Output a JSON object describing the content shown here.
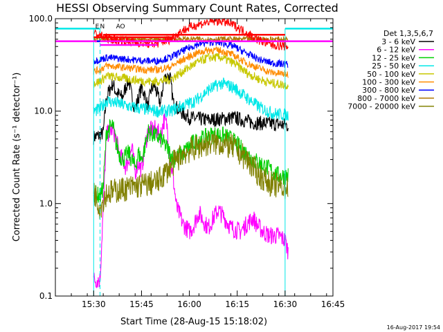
{
  "chart_data": {
    "type": "line",
    "title": "HESSI Observing Summary Count Rates, Corrected",
    "xlabel": "Start Time (28-Aug-15 15:18:02)",
    "ylabel": "Corrected Count Rate (s⁻¹ detector⁻¹)",
    "x_unit": "minutes since 15:18:02",
    "xlim": [
      0,
      87
    ],
    "ylim": [
      0.1,
      100
    ],
    "yscale": "log",
    "x_ticks": [
      {
        "t": 12,
        "label": "15:30"
      },
      {
        "t": 27,
        "label": "15:45"
      },
      {
        "t": 42,
        "label": "16:00"
      },
      {
        "t": 57,
        "label": "16:15"
      },
      {
        "t": 72,
        "label": "16:30"
      },
      {
        "t": 87,
        "label": "16:45"
      }
    ],
    "y_ticks": [
      {
        "v": 0.1,
        "label": "0.1"
      },
      {
        "v": 1,
        "label": "1.0"
      },
      {
        "v": 10,
        "label": "10.0"
      },
      {
        "v": 100,
        "label": "100.0"
      }
    ],
    "legend": {
      "title": "Det 1,3,5,6,7",
      "placement": "right"
    },
    "series": [
      {
        "name": "3 - 6 keV",
        "color": "#000000",
        "noise": 0.08,
        "points": [
          [
            12,
            5.2
          ],
          [
            14,
            5.5
          ],
          [
            15,
            5.8
          ],
          [
            16,
            14
          ],
          [
            17,
            17
          ],
          [
            18,
            20
          ],
          [
            19,
            16
          ],
          [
            21,
            14
          ],
          [
            22,
            18
          ],
          [
            23,
            22
          ],
          [
            24,
            14
          ],
          [
            25,
            10.5
          ],
          [
            26,
            14
          ],
          [
            27,
            18
          ],
          [
            28,
            15
          ],
          [
            29,
            11
          ],
          [
            30,
            17
          ],
          [
            31,
            19
          ],
          [
            32,
            15
          ],
          [
            33,
            12
          ],
          [
            34,
            22
          ],
          [
            35,
            24
          ],
          [
            36,
            23
          ],
          [
            37,
            12
          ],
          [
            39,
            10
          ],
          [
            42,
            8.5
          ],
          [
            48,
            8
          ],
          [
            56,
            8.5
          ],
          [
            62,
            7.5
          ],
          [
            70,
            7.2
          ],
          [
            73,
            7
          ]
        ]
      },
      {
        "name": "6 - 12 keV",
        "color": "#ff00ff",
        "noise": 0.1,
        "points": [
          [
            12,
            0.15
          ],
          [
            14,
            0.15
          ],
          [
            15,
            0.9
          ],
          [
            16,
            5.5
          ],
          [
            18,
            6.5
          ],
          [
            19,
            5
          ],
          [
            20,
            3.5
          ],
          [
            21,
            3
          ],
          [
            22,
            2.5
          ],
          [
            23,
            3
          ],
          [
            24,
            4
          ],
          [
            25,
            2.2
          ],
          [
            26,
            2.8
          ],
          [
            27,
            2.3
          ],
          [
            28,
            4
          ],
          [
            29,
            6
          ],
          [
            31,
            6.5
          ],
          [
            33,
            5.5
          ],
          [
            34,
            8
          ],
          [
            35,
            7
          ],
          [
            36,
            3
          ],
          [
            37,
            1.8
          ],
          [
            38,
            0.9
          ],
          [
            39,
            0.75
          ],
          [
            40,
            0.6
          ],
          [
            42,
            0.5
          ],
          [
            43,
            0.55
          ],
          [
            45,
            0.8
          ],
          [
            47,
            0.6
          ],
          [
            48,
            0.55
          ],
          [
            50,
            0.75
          ],
          [
            51,
            0.85
          ],
          [
            53,
            0.7
          ],
          [
            55,
            0.55
          ],
          [
            58,
            0.5
          ],
          [
            60,
            0.6
          ],
          [
            62,
            0.7
          ],
          [
            63,
            0.6
          ],
          [
            65,
            0.5
          ],
          [
            67,
            0.45
          ],
          [
            70,
            0.45
          ],
          [
            72,
            0.4
          ],
          [
            73,
            0.3
          ]
        ]
      },
      {
        "name": "12 - 25 keV",
        "color": "#00d000",
        "noise": 0.1,
        "points": [
          [
            12,
            1.3
          ],
          [
            14,
            1.2
          ],
          [
            15,
            1.5
          ],
          [
            16,
            6
          ],
          [
            18,
            7
          ],
          [
            19,
            4.5
          ],
          [
            20,
            3.5
          ],
          [
            21,
            3
          ],
          [
            23,
            3.5
          ],
          [
            25,
            2.5
          ],
          [
            26,
            3.5
          ],
          [
            27,
            3
          ],
          [
            28,
            4
          ],
          [
            29,
            6
          ],
          [
            31,
            5.5
          ],
          [
            33,
            5
          ],
          [
            35,
            4
          ],
          [
            37,
            3
          ],
          [
            40,
            3.5
          ],
          [
            43,
            4.5
          ],
          [
            46,
            5
          ],
          [
            49,
            5.5
          ],
          [
            52,
            5.5
          ],
          [
            55,
            5
          ],
          [
            58,
            4
          ],
          [
            62,
            3
          ],
          [
            66,
            2.5
          ],
          [
            70,
            2
          ],
          [
            73,
            2
          ]
        ]
      },
      {
        "name": "25 - 50 keV",
        "color": "#00e8e8",
        "noise": 0.07,
        "points": [
          [
            12,
            10
          ],
          [
            14,
            10.5
          ],
          [
            16,
            13
          ],
          [
            20,
            12
          ],
          [
            24,
            11
          ],
          [
            28,
            10.5
          ],
          [
            32,
            10
          ],
          [
            36,
            10
          ],
          [
            40,
            11.5
          ],
          [
            44,
            13
          ],
          [
            48,
            17
          ],
          [
            52,
            20
          ],
          [
            56,
            18
          ],
          [
            60,
            14
          ],
          [
            64,
            11
          ],
          [
            68,
            9.5
          ],
          [
            73,
            9
          ]
        ]
      },
      {
        "name": "50 - 100 keV",
        "color": "#c8c800",
        "noise": 0.05,
        "points": [
          [
            12,
            20
          ],
          [
            14,
            21
          ],
          [
            16,
            24
          ],
          [
            20,
            23
          ],
          [
            24,
            22
          ],
          [
            28,
            21
          ],
          [
            32,
            21
          ],
          [
            36,
            22
          ],
          [
            40,
            27
          ],
          [
            44,
            33
          ],
          [
            48,
            38
          ],
          [
            52,
            38
          ],
          [
            56,
            33
          ],
          [
            60,
            26
          ],
          [
            64,
            22
          ],
          [
            68,
            20
          ],
          [
            73,
            19
          ]
        ]
      },
      {
        "name": "100 - 300 keV",
        "color": "#ff8c00",
        "noise": 0.04,
        "points": [
          [
            12,
            27
          ],
          [
            14,
            28
          ],
          [
            16,
            31
          ],
          [
            20,
            30
          ],
          [
            24,
            29
          ],
          [
            28,
            28
          ],
          [
            32,
            28
          ],
          [
            36,
            30
          ],
          [
            40,
            36
          ],
          [
            44,
            42
          ],
          [
            48,
            46
          ],
          [
            52,
            45
          ],
          [
            56,
            40
          ],
          [
            60,
            33
          ],
          [
            64,
            29
          ],
          [
            68,
            26
          ],
          [
            73,
            25
          ]
        ]
      },
      {
        "name": "300 - 800 keV",
        "color": "#0000ff",
        "noise": 0.04,
        "points": [
          [
            12,
            35
          ],
          [
            14,
            36
          ],
          [
            16,
            38
          ],
          [
            20,
            37
          ],
          [
            24,
            36
          ],
          [
            28,
            35
          ],
          [
            32,
            35
          ],
          [
            36,
            38
          ],
          [
            40,
            45
          ],
          [
            44,
            52
          ],
          [
            48,
            56
          ],
          [
            52,
            55
          ],
          [
            56,
            50
          ],
          [
            60,
            42
          ],
          [
            64,
            36
          ],
          [
            68,
            33
          ],
          [
            73,
            32
          ]
        ]
      },
      {
        "name": "800 - 7000 keV",
        "color": "#b07800",
        "noise": 0.03,
        "points": [
          [
            12,
            60
          ],
          [
            73,
            60
          ]
        ]
      },
      {
        "name": "7000 - 20000 keV",
        "color": "#808000",
        "noise": 0.14,
        "points": [
          [
            12,
            1.4
          ],
          [
            14,
            0.9
          ],
          [
            16,
            1.3
          ],
          [
            20,
            1.4
          ],
          [
            24,
            1.5
          ],
          [
            28,
            1.6
          ],
          [
            32,
            1.7
          ],
          [
            36,
            2.5
          ],
          [
            40,
            3.5
          ],
          [
            44,
            4
          ],
          [
            48,
            4.5
          ],
          [
            52,
            4.5
          ],
          [
            56,
            4
          ],
          [
            60,
            3
          ],
          [
            64,
            2
          ],
          [
            68,
            1.6
          ],
          [
            73,
            1.5
          ]
        ]
      },
      {
        "name": "",
        "color": "#ff0000",
        "noise": 0.05,
        "points": [
          [
            12,
            70
          ],
          [
            14,
            66
          ],
          [
            16,
            62
          ],
          [
            20,
            58
          ],
          [
            24,
            56
          ],
          [
            28,
            54
          ],
          [
            32,
            54
          ],
          [
            36,
            60
          ],
          [
            40,
            75
          ],
          [
            44,
            85
          ],
          [
            48,
            92
          ],
          [
            52,
            95
          ],
          [
            56,
            85
          ],
          [
            60,
            70
          ],
          [
            64,
            58
          ],
          [
            68,
            52
          ],
          [
            73,
            50
          ]
        ]
      }
    ],
    "segments": [
      {
        "color": "#ff00ff",
        "y": 57,
        "t0": 0,
        "t1": 87
      },
      {
        "color": "#00e8e8",
        "y": 78,
        "t0": 0,
        "t1": 14
      },
      {
        "color": "#00e8e8",
        "y": 78,
        "t0": 72,
        "t1": 87
      },
      {
        "color": "#ff0000",
        "y": 67,
        "t0": 15,
        "t1": 72
      },
      {
        "color": "#ff0000",
        "y": 63,
        "t0": 12,
        "t1": 37
      },
      {
        "color": "#0000ff",
        "y": 57,
        "t0": 13,
        "t1": 14
      },
      {
        "color": "#ff00ff",
        "y": 52,
        "t0": 14,
        "t1": 32
      }
    ],
    "markers": [
      {
        "label": "N",
        "t": 14
      },
      {
        "label": "E",
        "t": 12.5
      },
      {
        "label": "AO",
        "t": 19
      }
    ],
    "vlines": [
      {
        "t": 12,
        "color": "#00e8e8",
        "style": "solid",
        "ymin": 0.1,
        "ymax": 78
      },
      {
        "t": 72,
        "color": "#00e8e8",
        "style": "solid",
        "ymin": 0.1,
        "ymax": 78
      },
      {
        "t": 87,
        "color": "#00e8e8",
        "style": "dashed",
        "ymin": 0.1,
        "ymax": 78
      },
      {
        "t": 14,
        "color": "#00e8e8",
        "style": "dashed",
        "ymin": 0.1,
        "ymax": 78
      }
    ]
  },
  "footer": {
    "timestamp": "16-Aug-2017 19:54"
  }
}
